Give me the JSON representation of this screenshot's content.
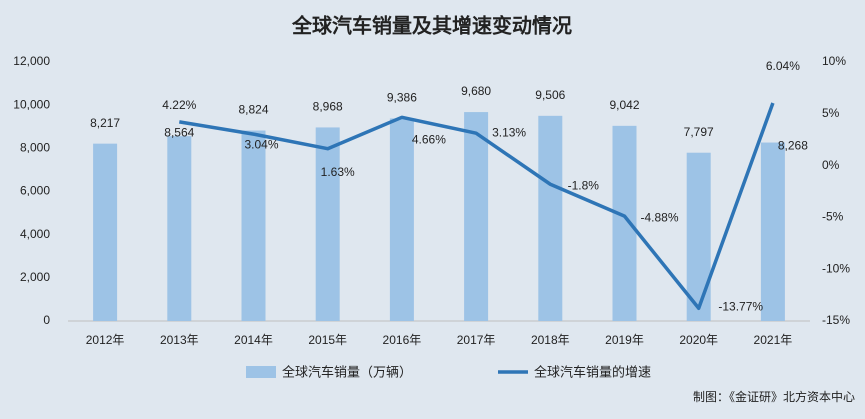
{
  "chart_data": {
    "type": "bar-line",
    "title": "全球汽车销量及其增速变动情况",
    "source": "制图：《金证研》北方资本中心",
    "categories": [
      "2012年",
      "2013年",
      "2014年",
      "2015年",
      "2016年",
      "2017年",
      "2018年",
      "2019年",
      "2020年",
      "2021年"
    ],
    "series": [
      {
        "name": "全球汽车销量（万辆）",
        "type": "bar",
        "color": "#9dc3e6",
        "values": [
          8217,
          8564,
          8824,
          8968,
          9386,
          9680,
          9506,
          9042,
          7797,
          8268
        ],
        "value_labels": [
          "8,217",
          "8,564",
          "8,824",
          "8,968",
          "9,386",
          "9,680",
          "9,506",
          "9,042",
          "7,797",
          "8,268"
        ]
      },
      {
        "name": "全球汽车销量的增速",
        "type": "line",
        "color": "#2e75b6",
        "axis": "y2",
        "values": [
          null,
          4.22,
          3.04,
          1.63,
          4.66,
          3.13,
          -1.8,
          -4.88,
          -13.77,
          6.04
        ],
        "value_labels": [
          null,
          "4.22%",
          "3.04%",
          "1.63%",
          "4.66%",
          "3.13%",
          "-1.8%",
          "-4.88%",
          "-13.77%",
          "6.04%"
        ]
      }
    ],
    "ylim": [
      0,
      12000
    ],
    "yticks": [
      0,
      {
        "value": 2000,
        "label": "2,000"
      },
      {
        "value": 4000,
        "label": "4,000"
      },
      {
        "value": 6000,
        "label": "6,000"
      },
      {
        "value": 8000,
        "label": "8,000"
      },
      {
        "value": 10000,
        "label": "10,000"
      },
      {
        "value": 12000,
        "label": "12,000"
      }
    ],
    "y2lim": [
      -15,
      10
    ],
    "y2ticks": [
      {
        "value": -15,
        "label": "-15%"
      },
      {
        "value": -10,
        "label": "-10%"
      },
      {
        "value": -5,
        "label": "-5%"
      },
      {
        "value": 0,
        "label": "0%"
      },
      {
        "value": 5,
        "label": "5%"
      },
      {
        "value": 10,
        "label": "10%"
      }
    ]
  }
}
